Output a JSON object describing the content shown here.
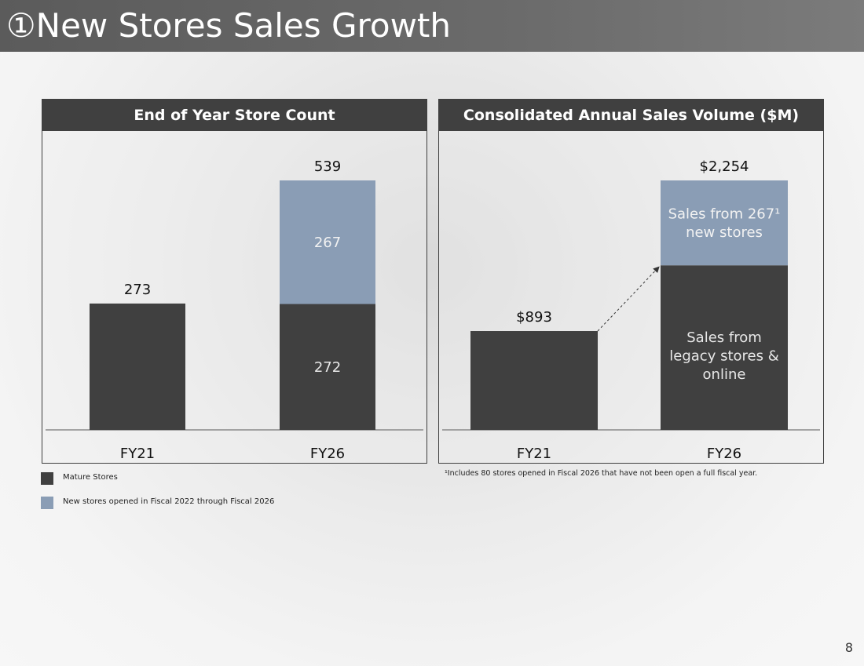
{
  "slide": {
    "title": "①New Stores Sales Growth",
    "page_number": "8",
    "footnote": "¹Includes 80 stores opened in Fiscal 2026 that have not been open a full fiscal year."
  },
  "legend": [
    {
      "label": "Mature Stores",
      "color": "#404040"
    },
    {
      "label": "New stores opened in Fiscal 2022 through Fiscal 2026",
      "color": "#8a9db5"
    }
  ],
  "colors": {
    "dark": "#404040",
    "light": "#8a9db5"
  },
  "chart_data": [
    {
      "type": "bar",
      "stacked": true,
      "title": "End of Year Store Count",
      "categories": [
        "FY21",
        "FY26"
      ],
      "ylim": [
        0,
        600
      ],
      "series": [
        {
          "values": [
            273,
            272
          ],
          "color": "#404040",
          "labels": [
            "",
            "272"
          ]
        },
        {
          "values": [
            0,
            267
          ],
          "color": "#8a9db5",
          "labels": [
            "",
            "267"
          ]
        }
      ],
      "totals": [
        "273",
        "539"
      ]
    },
    {
      "type": "bar",
      "stacked": true,
      "title": "Consolidated Annual Sales Volume ($M)",
      "categories": [
        "FY21",
        "FY26"
      ],
      "ylim": [
        0,
        2500
      ],
      "series": [
        {
          "values": [
            893,
            1487
          ],
          "color": "#404040",
          "labels": [
            "",
            "Sales from\nlegacy stores &\nonline"
          ]
        },
        {
          "values": [
            0,
            767
          ],
          "color": "#8a9db5",
          "labels": [
            "",
            "Sales from 267¹\nnew stores"
          ]
        }
      ],
      "totals": [
        "$893",
        "$2,254"
      ],
      "annotation": "dashed arrow from FY21 bar top to FY26 legacy segment top"
    }
  ]
}
